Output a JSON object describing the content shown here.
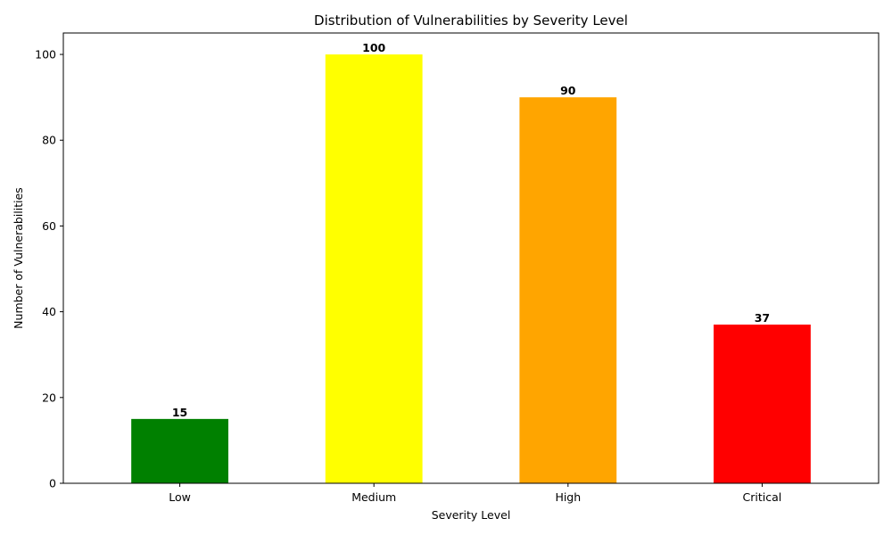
{
  "chart_data": {
    "type": "bar",
    "title": "Distribution of Vulnerabilities by Severity Level",
    "xlabel": "Severity Level",
    "ylabel": "Number of Vulnerabilities",
    "categories": [
      "Low",
      "Medium",
      "High",
      "Critical"
    ],
    "values": [
      15,
      100,
      90,
      37
    ],
    "data_labels": [
      "15",
      "100",
      "90",
      "37"
    ],
    "colors": [
      "#008000",
      "#ffff00",
      "#ffa500",
      "#ff0000"
    ],
    "ylim": [
      0,
      105
    ],
    "yticks": [
      0,
      20,
      40,
      60,
      80,
      100
    ],
    "ytick_labels": [
      "0",
      "20",
      "40",
      "60",
      "80",
      "100"
    ],
    "grid": false,
    "legend": "none"
  }
}
